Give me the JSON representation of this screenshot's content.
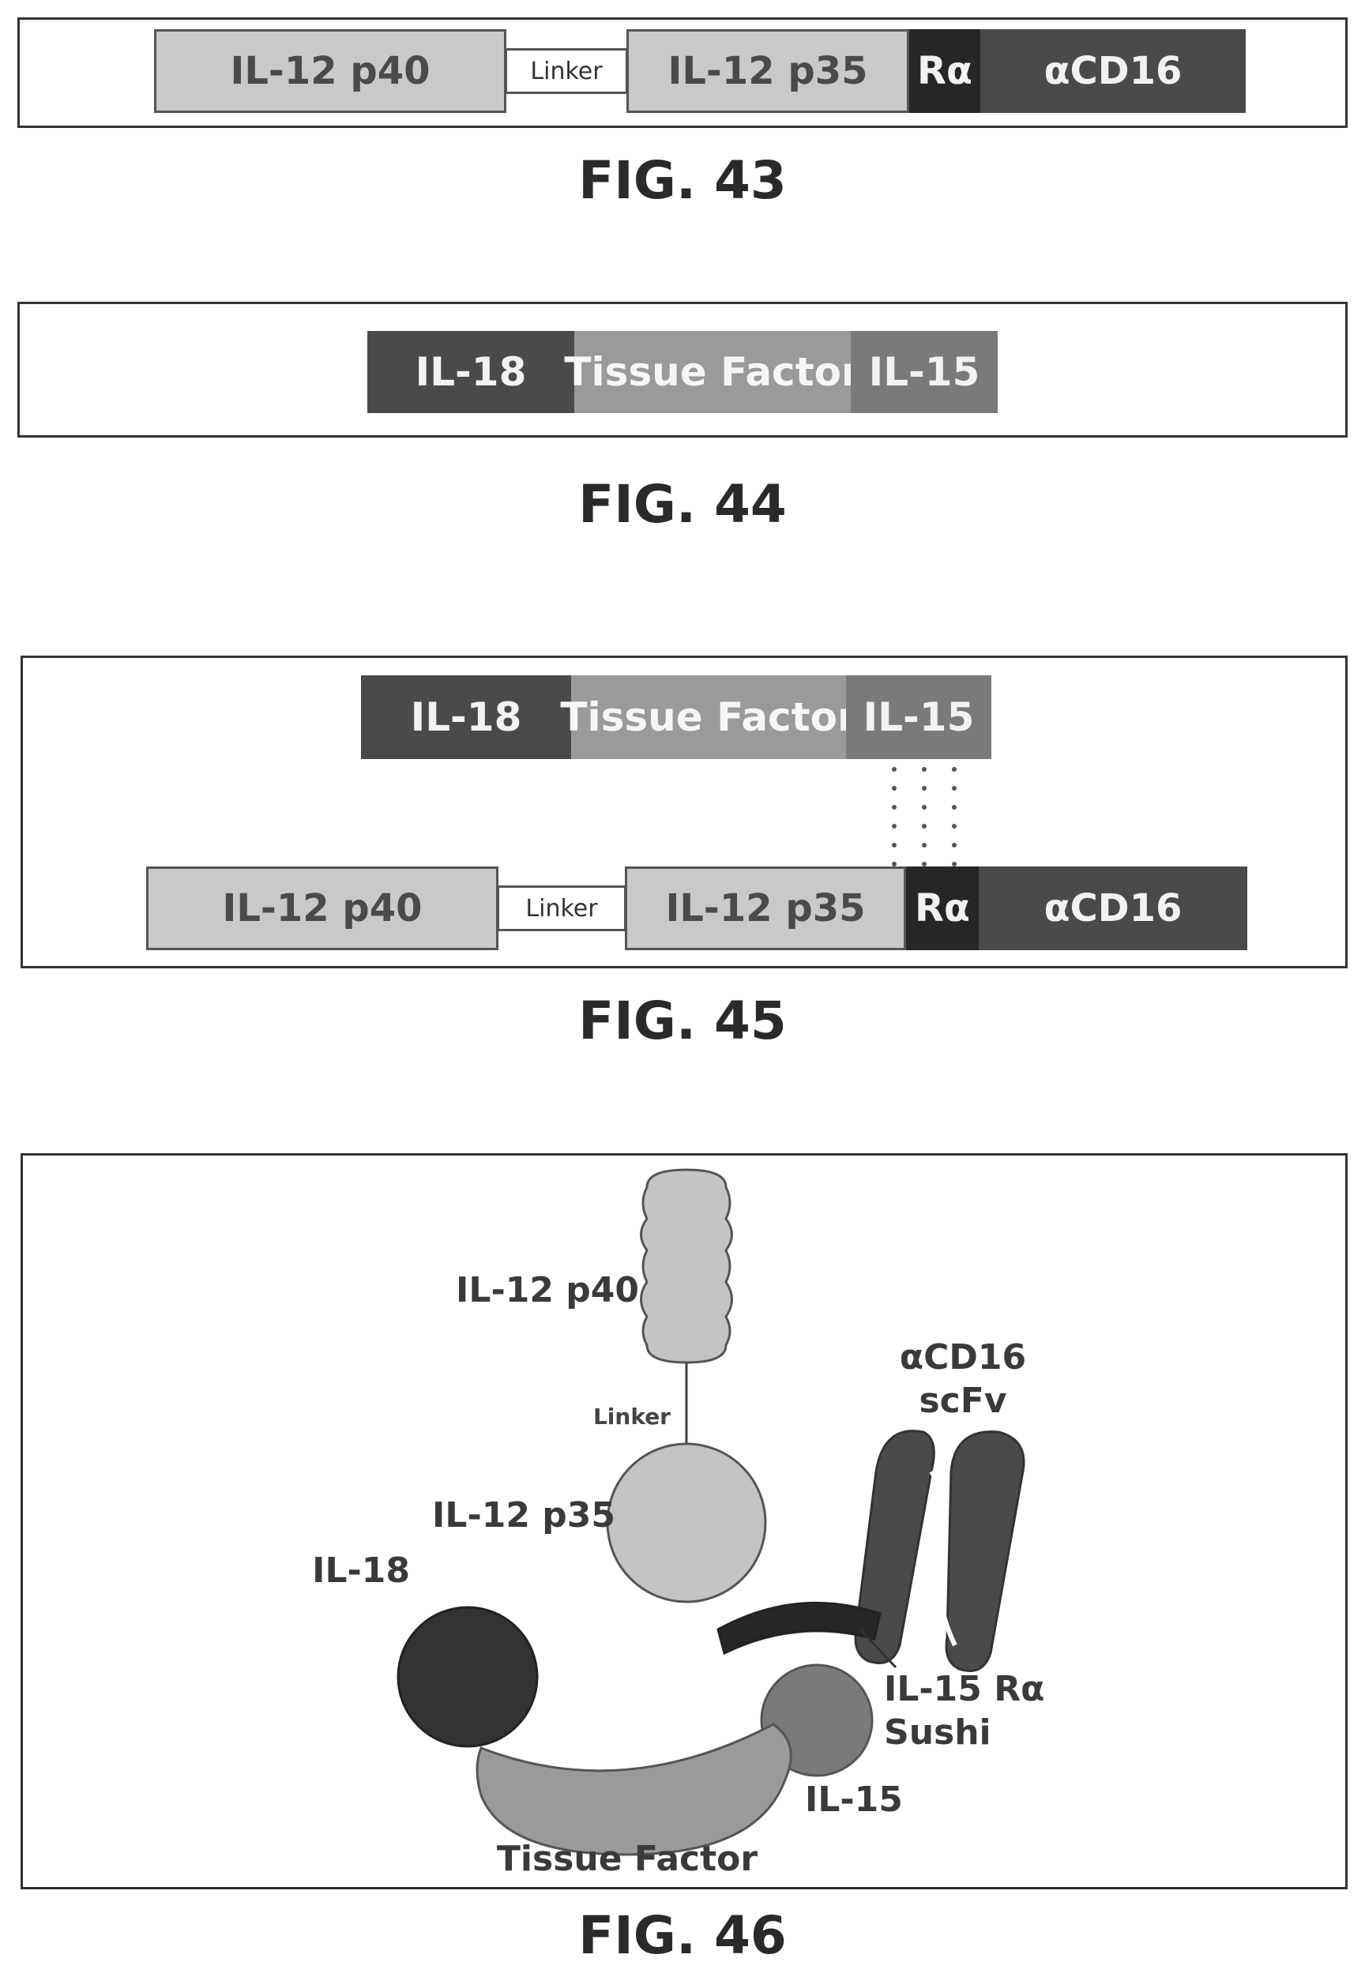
{
  "fig43": {
    "caption": "FIG. 43",
    "segments": {
      "p40": "IL-12 p40",
      "linker": "Linker",
      "p35": "IL-12 p35",
      "ra": "Rα",
      "cd16": "αCD16"
    }
  },
  "fig44": {
    "caption": "FIG. 44",
    "segments": {
      "il18": "IL-18",
      "tf": "Tissue Factor",
      "il15": "IL-15"
    }
  },
  "fig45": {
    "caption": "FIG. 45",
    "top": {
      "il18": "IL-18",
      "tf": "Tissue Factor",
      "il15": "IL-15"
    },
    "bottom": {
      "p40": "IL-12 p40",
      "linker": "Linker",
      "p35": "IL-12 p35",
      "ra": "Rα",
      "cd16": "αCD16"
    }
  },
  "fig46": {
    "caption": "FIG. 46",
    "labels": {
      "p40": "IL-12 p40",
      "linker": "Linker",
      "p35": "IL-12 p35",
      "cd16_line1": "αCD16",
      "cd16_line2": "scFv",
      "il18": "IL-18",
      "sushi_line1": "IL-15 Rα",
      "sushi_line2": "Sushi",
      "il15": "IL-15",
      "tf": "Tissue Factor"
    }
  },
  "colors": {
    "light": "#c9c9c9",
    "mid": "#7a7a7a",
    "dark": "#4a4a4a",
    "darker": "#262626",
    "outline": "#333333"
  }
}
